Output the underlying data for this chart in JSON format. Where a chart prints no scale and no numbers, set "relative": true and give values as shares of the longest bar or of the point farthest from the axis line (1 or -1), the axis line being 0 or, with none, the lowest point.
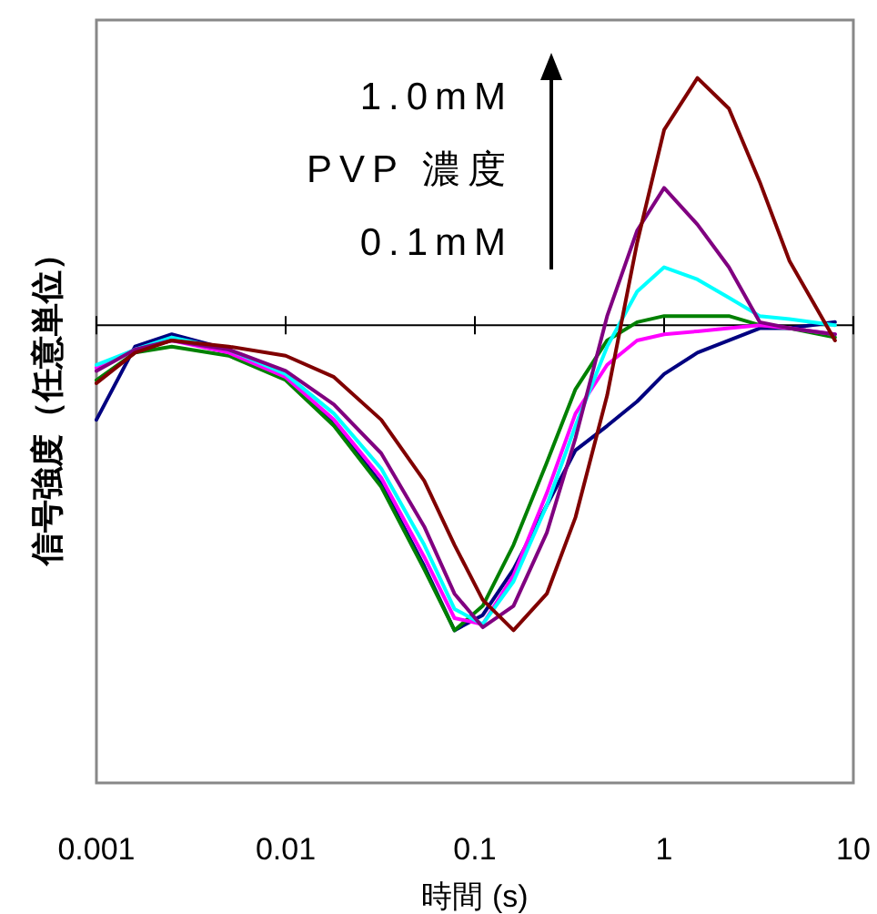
{
  "chart_data": {
    "type": "line",
    "xlabel": "時間 (s)",
    "ylabel": "信号強度（任意単位）",
    "relative": true,
    "log": "x",
    "xlim": [
      0.001,
      10
    ],
    "xticks": [
      0.001,
      0.01,
      0.1,
      1,
      10
    ],
    "tick_labels": "x",
    "legend": false,
    "marker": "none",
    "line_style": "solid",
    "x": [
      0.001,
      0.0016,
      0.0025,
      0.005,
      0.01,
      0.018,
      0.032,
      0.054,
      0.078,
      0.11,
      0.16,
      0.24,
      0.34,
      0.5,
      0.72,
      1.0,
      1.5,
      2.2,
      3.2,
      4.6,
      8
    ],
    "annotations": [
      "1.0mM",
      "PVP 濃度",
      "0.1mM"
    ],
    "series": [
      {
        "color": "#000080",
        "values": [
          -0.31,
          -0.07,
          -0.03,
          -0.08,
          -0.17,
          -0.32,
          -0.52,
          -0.79,
          -1.0,
          -0.95,
          -0.8,
          -0.59,
          -0.41,
          -0.33,
          -0.25,
          -0.16,
          -0.09,
          -0.05,
          -0.01,
          -0.01,
          0.01
        ]
      },
      {
        "color": "#008000",
        "values": [
          -0.18,
          -0.09,
          -0.07,
          -0.1,
          -0.18,
          -0.33,
          -0.53,
          -0.8,
          -1.0,
          -0.92,
          -0.72,
          -0.45,
          -0.21,
          -0.05,
          0.01,
          0.03,
          0.03,
          0.03,
          0.0,
          -0.01,
          -0.04
        ]
      },
      {
        "color": "#ff00ff",
        "values": [
          -0.14,
          -0.08,
          -0.05,
          -0.09,
          -0.17,
          -0.31,
          -0.5,
          -0.76,
          -0.96,
          -0.98,
          -0.82,
          -0.55,
          -0.29,
          -0.13,
          -0.05,
          -0.03,
          -0.02,
          -0.01,
          0.0,
          -0.01,
          -0.03
        ]
      },
      {
        "color": "#00ffff",
        "values": [
          -0.13,
          -0.08,
          -0.04,
          -0.08,
          -0.16,
          -0.29,
          -0.47,
          -0.72,
          -0.93,
          -0.98,
          -0.84,
          -0.59,
          -0.33,
          -0.07,
          0.11,
          0.19,
          0.15,
          0.09,
          0.03,
          0.02,
          0.0
        ]
      },
      {
        "color": "#800080",
        "values": [
          -0.15,
          -0.08,
          -0.05,
          -0.08,
          -0.15,
          -0.26,
          -0.42,
          -0.66,
          -0.88,
          -0.99,
          -0.92,
          -0.68,
          -0.37,
          0.03,
          0.31,
          0.45,
          0.33,
          0.19,
          0.01,
          -0.01,
          -0.03
        ]
      },
      {
        "color": "#800000",
        "values": [
          -0.19,
          -0.09,
          -0.05,
          -0.07,
          -0.1,
          -0.17,
          -0.31,
          -0.51,
          -0.72,
          -0.9,
          -1.0,
          -0.88,
          -0.63,
          -0.23,
          0.27,
          0.64,
          0.81,
          0.71,
          0.47,
          0.21,
          -0.05
        ]
      }
    ]
  }
}
